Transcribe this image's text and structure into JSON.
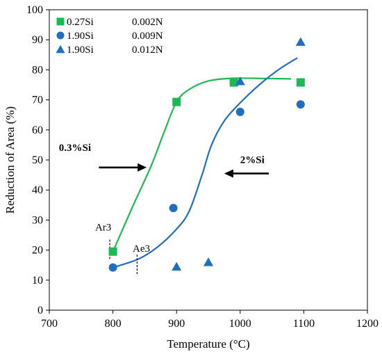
{
  "chart_data": {
    "type": "scatter",
    "xlabel": "Temperature (°C)",
    "ylabel": "Reduction of Area (%)",
    "xlim": [
      700,
      1200
    ],
    "ylim": [
      0,
      100
    ],
    "x_ticks": [
      700,
      800,
      900,
      1000,
      1100,
      1200
    ],
    "y_ticks": [
      0,
      10,
      20,
      30,
      40,
      50,
      60,
      70,
      80,
      90,
      100
    ],
    "grid": false,
    "legend_position": "top-left",
    "series": [
      {
        "name": "0.27Si 0.002N",
        "legend_label": "0.27Si",
        "legend_n": "0.002N",
        "marker": "square",
        "color": "#1db954",
        "points": [
          [
            800,
            19.5
          ],
          [
            900,
            69.3
          ],
          [
            990,
            75.8
          ],
          [
            1095,
            75.8
          ]
        ]
      },
      {
        "name": "1.90Si 0.009N",
        "legend_label": "1.90Si",
        "legend_n": "0.009N",
        "marker": "circle",
        "color": "#1f6fc0",
        "points": [
          [
            800,
            14.2
          ],
          [
            895,
            34.0
          ],
          [
            1000,
            66.0
          ],
          [
            1095,
            68.5
          ]
        ]
      },
      {
        "name": "1.90Si 0.012N",
        "legend_label": "1.90Si",
        "legend_n": "0.012N",
        "marker": "triangle",
        "color": "#1f6fc0",
        "points": [
          [
            900,
            14.5
          ],
          [
            950,
            16.0
          ],
          [
            1000,
            76.2
          ],
          [
            1095,
            89.3
          ]
        ]
      }
    ],
    "trend_lines": [
      {
        "color": "#1db954",
        "points": [
          [
            800,
            19.5
          ],
          [
            830,
            34
          ],
          [
            860,
            48
          ],
          [
            880,
            59
          ],
          [
            900,
            69.3
          ],
          [
            920,
            73.5
          ],
          [
            950,
            76.3
          ],
          [
            990,
            77.2
          ],
          [
            1040,
            77.1
          ],
          [
            1080,
            77.0
          ]
        ]
      },
      {
        "color": "#1f6fc0",
        "points": [
          [
            800,
            14.2
          ],
          [
            840,
            17
          ],
          [
            870,
            21
          ],
          [
            900,
            27
          ],
          [
            920,
            33
          ],
          [
            940,
            45
          ],
          [
            955,
            55
          ],
          [
            975,
            63
          ],
          [
            1000,
            69
          ],
          [
            1030,
            75
          ],
          [
            1060,
            80
          ],
          [
            1090,
            84
          ]
        ]
      }
    ],
    "annotations": [
      {
        "id": "si03",
        "text": "0.3%Si",
        "bold": true,
        "x": 715,
        "y": 53
      },
      {
        "id": "si2",
        "text": "2%Si",
        "bold": true,
        "x": 1000,
        "y": 49
      },
      {
        "id": "ar3",
        "text": "Ar3",
        "bold": false,
        "x": 772,
        "y": 26.5
      },
      {
        "id": "ae3",
        "text": "Ae3",
        "bold": false,
        "x": 831,
        "y": 19.5
      }
    ],
    "arrows": [
      {
        "from": [
          778,
          47.5
        ],
        "to": [
          853,
          47.5
        ],
        "direction": "right"
      },
      {
        "from": [
          1045,
          45.5
        ],
        "to": [
          975,
          45.5
        ],
        "direction": "left"
      }
    ],
    "dashed_markers": [
      {
        "x": 795,
        "y_from": 17,
        "y_to": 24
      },
      {
        "x": 838,
        "y_from": 12,
        "y_to": 18.5
      }
    ]
  }
}
